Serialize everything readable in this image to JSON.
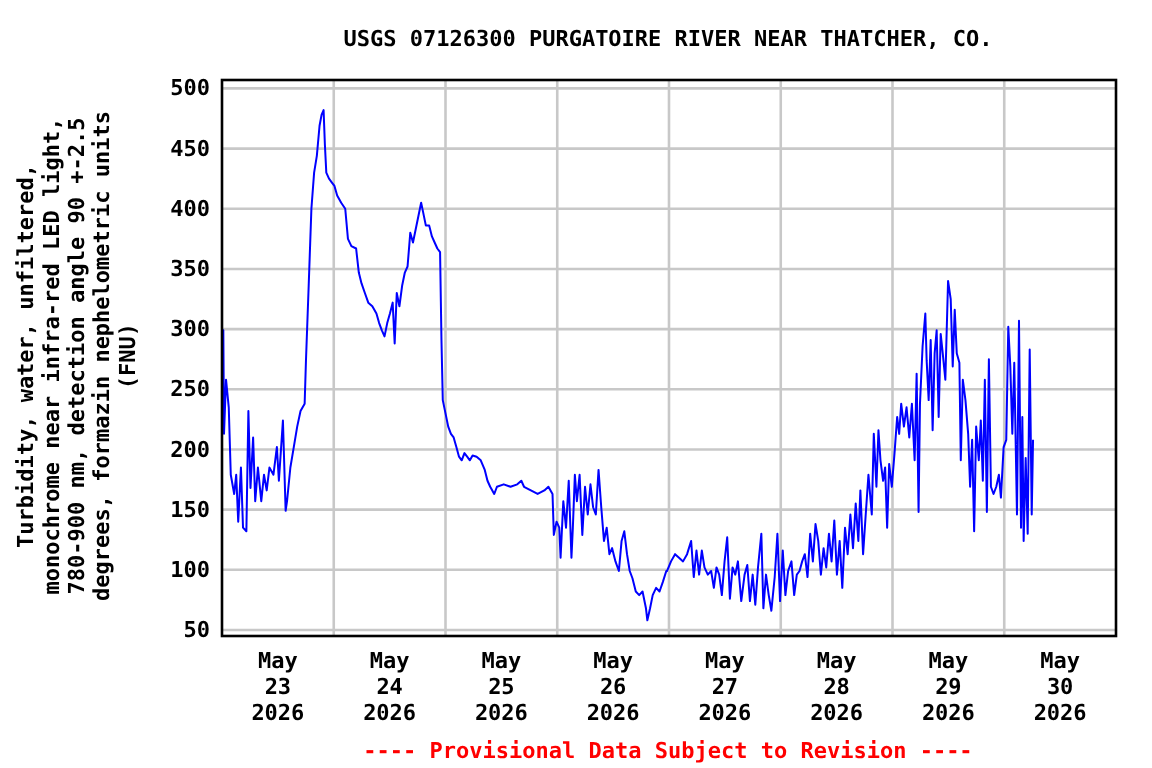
{
  "chart_data": {
    "type": "line",
    "title": "USGS 07126300 PURGATOIRE RIVER NEAR THATCHER, CO.",
    "ylabel": "Turbidity, water, unfiltered,\nmonochrome near infra-red LED light,\n780-900 nm, detection angle 90 +-2.5\ndegrees, formazin nephelometric units\n(FNU)",
    "annotations": [
      "---- Provisional Data Subject to Revision ----"
    ],
    "xlim": [
      "2026-05-23",
      "2026-05-31"
    ],
    "xticks": [
      {
        "value": "2026-05-23T12:00",
        "label": "May 23 2026"
      },
      {
        "value": "2026-05-24T00:00",
        "label": null
      },
      {
        "value": "2026-05-24T12:00",
        "label": "May 24 2026"
      },
      {
        "value": "2026-05-25T00:00",
        "label": null
      },
      {
        "value": "2026-05-25T12:00",
        "label": "May 25 2026"
      },
      {
        "value": "2026-05-26T00:00",
        "label": null
      },
      {
        "value": "2026-05-26T12:00",
        "label": "May 26 2026"
      },
      {
        "value": "2026-05-27T00:00",
        "label": null
      },
      {
        "value": "2026-05-27T12:00",
        "label": "May 27 2026"
      },
      {
        "value": "2026-05-28T00:00",
        "label": null
      },
      {
        "value": "2026-05-28T12:00",
        "label": "May 28 2026"
      },
      {
        "value": "2026-05-29T00:00",
        "label": null
      },
      {
        "value": "2026-05-29T12:00",
        "label": "May 29 2026"
      },
      {
        "value": "2026-05-30T00:00",
        "label": null
      },
      {
        "value": "2026-05-30T12:00",
        "label": "May 30 2026"
      }
    ],
    "ylim": [
      45,
      507
    ],
    "yticks": [
      50,
      100,
      150,
      200,
      250,
      300,
      350,
      400,
      450,
      500
    ],
    "grid": true,
    "series": [
      {
        "color": "#0000ff",
        "x": [
          "2026-05-23T00:10",
          "2026-05-23T00:17",
          "2026-05-23T00:26",
          "2026-05-23T00:52",
          "2026-05-23T01:27",
          "2026-05-23T01:53",
          "2026-05-23T02:37",
          "2026-05-23T03:03",
          "2026-05-23T03:29",
          "2026-05-23T04:04",
          "2026-05-23T04:31",
          "2026-05-23T05:14",
          "2026-05-23T05:40",
          "2026-05-23T06:07",
          "2026-05-23T06:41",
          "2026-05-23T07:08",
          "2026-05-23T07:43",
          "2026-05-23T08:26",
          "2026-05-23T09:01",
          "2026-05-23T09:36",
          "2026-05-23T10:11",
          "2026-05-23T11:03",
          "2026-05-23T11:47",
          "2026-05-23T12:13",
          "2026-05-23T13:05",
          "2026-05-23T13:40",
          "2026-05-23T13:58",
          "2026-05-23T14:41",
          "2026-05-23T15:25",
          "2026-05-23T16:09",
          "2026-05-23T16:52",
          "2026-05-23T17:45",
          "2026-05-23T18:02",
          "2026-05-23T18:37",
          "2026-05-23T19:12",
          "2026-05-23T19:47",
          "2026-05-23T20:22",
          "2026-05-23T20:57",
          "2026-05-23T21:23",
          "2026-05-23T21:49",
          "2026-05-23T22:06",
          "2026-05-23T22:24",
          "2026-05-23T22:59",
          "2026-05-23T23:34",
          "2026-05-24T00:09",
          "2026-05-24T00:44",
          "2026-05-24T01:36",
          "2026-05-24T02:28",
          "2026-05-24T03:03",
          "2026-05-24T03:47",
          "2026-05-24T04:48",
          "2026-05-24T05:23",
          "2026-05-24T05:58",
          "2026-05-24T06:41",
          "2026-05-24T07:25",
          "2026-05-24T08:17",
          "2026-05-24T09:10",
          "2026-05-24T09:45",
          "2026-05-24T10:20",
          "2026-05-24T10:54",
          "2026-05-24T11:29",
          "2026-05-24T12:04",
          "2026-05-24T12:39",
          "2026-05-24T13:05",
          "2026-05-24T13:32",
          "2026-05-24T14:06",
          "2026-05-24T14:41",
          "2026-05-24T15:16",
          "2026-05-24T15:51",
          "2026-05-24T16:26",
          "2026-05-24T17:01",
          "2026-05-24T17:36",
          "2026-05-24T18:11",
          "2026-05-24T18:46",
          "2026-05-24T19:12",
          "2026-05-24T19:47",
          "2026-05-24T20:30",
          "2026-05-24T21:05",
          "2026-05-24T21:40",
          "2026-05-24T22:15",
          "2026-05-24T22:50",
          "2026-05-24T23:08",
          "2026-05-24T23:25",
          "2026-05-25T00:00",
          "2026-05-25T00:35",
          "2026-05-25T01:10",
          "2026-05-25T01:45",
          "2026-05-25T02:20",
          "2026-05-25T02:54",
          "2026-05-25T03:29",
          "2026-05-25T04:04",
          "2026-05-25T04:39",
          "2026-05-25T05:14",
          "2026-05-25T05:49",
          "2026-05-25T06:41",
          "2026-05-25T07:34",
          "2026-05-25T08:26",
          "2026-05-25T09:01",
          "2026-05-25T09:36",
          "2026-05-25T10:28",
          "2026-05-25T11:03",
          "2026-05-25T12:30",
          "2026-05-25T13:58",
          "2026-05-25T15:25",
          "2026-05-25T16:17",
          "2026-05-25T16:52",
          "2026-05-25T18:20",
          "2026-05-25T19:47",
          "2026-05-25T21:14",
          "2026-05-25T22:06",
          "2026-05-25T22:59",
          "2026-05-25T23:16",
          "2026-05-25T23:51",
          "2026-05-26T00:26",
          "2026-05-26T00:43",
          "2026-05-26T01:18",
          "2026-05-26T01:53",
          "2026-05-26T02:28",
          "2026-05-26T03:03",
          "2026-05-26T03:21",
          "2026-05-26T03:47",
          "2026-05-26T04:13",
          "2026-05-26T04:48",
          "2026-05-26T05:23",
          "2026-05-26T05:58",
          "2026-05-26T06:33",
          "2026-05-26T07:08",
          "2026-05-26T07:42",
          "2026-05-26T08:17",
          "2026-05-26T08:52",
          "2026-05-26T09:27",
          "2026-05-26T10:02",
          "2026-05-26T10:37",
          "2026-05-26T11:12",
          "2026-05-26T11:47",
          "2026-05-26T12:30",
          "2026-05-26T13:14",
          "2026-05-26T13:49",
          "2026-05-26T14:24",
          "2026-05-26T14:59",
          "2026-05-26T15:34",
          "2026-05-26T16:09",
          "2026-05-26T16:52",
          "2026-05-26T17:36",
          "2026-05-26T18:19",
          "2026-05-26T19:03",
          "2026-05-26T19:21",
          "2026-05-26T19:56",
          "2026-05-26T20:30",
          "2026-05-26T21:14",
          "2026-05-26T21:58",
          "2026-05-26T22:41",
          "2026-05-26T23:25",
          "2026-05-26T23:34",
          "2026-05-27T00:26",
          "2026-05-27T01:18",
          "2026-05-27T02:09",
          "2026-05-27T03:01",
          "2026-05-27T03:53",
          "2026-05-27T04:45",
          "2026-05-27T05:19",
          "2026-05-27T05:54",
          "2026-05-27T06:28",
          "2026-05-27T07:03",
          "2026-05-27T07:37",
          "2026-05-27T08:20",
          "2026-05-27T09:03",
          "2026-05-27T09:38",
          "2026-05-27T10:12",
          "2026-05-27T10:47",
          "2026-05-27T11:21",
          "2026-05-27T11:56",
          "2026-05-27T12:30",
          "2026-05-27T13:05",
          "2026-05-27T13:39",
          "2026-05-27T14:14",
          "2026-05-27T14:48",
          "2026-05-27T15:31",
          "2026-05-27T16:14",
          "2026-05-27T16:49",
          "2026-05-27T17:23",
          "2026-05-27T17:58",
          "2026-05-27T18:32",
          "2026-05-27T19:07",
          "2026-05-27T19:50",
          "2026-05-27T20:16",
          "2026-05-27T20:50",
          "2026-05-27T21:25",
          "2026-05-27T21:59",
          "2026-05-27T22:42",
          "2026-05-27T23:17",
          "2026-05-27T23:51",
          "2026-05-28T00:26",
          "2026-05-28T01:00",
          "2026-05-28T01:35",
          "2026-05-28T02:18",
          "2026-05-28T02:53",
          "2026-05-28T03:27",
          "2026-05-28T04:02",
          "2026-05-28T04:36",
          "2026-05-28T05:10",
          "2026-05-28T05:45",
          "2026-05-28T06:19",
          "2026-05-28T06:54",
          "2026-05-28T07:28",
          "2026-05-28T08:03",
          "2026-05-28T08:37",
          "2026-05-28T09:12",
          "2026-05-28T09:46",
          "2026-05-28T10:21",
          "2026-05-28T10:55",
          "2026-05-28T11:30",
          "2026-05-28T12:04",
          "2026-05-28T12:39",
          "2026-05-28T13:13",
          "2026-05-28T13:48",
          "2026-05-28T14:22",
          "2026-05-28T14:57",
          "2026-05-28T15:31",
          "2026-05-28T16:06",
          "2026-05-28T16:40",
          "2026-05-28T17:06",
          "2026-05-28T17:41",
          "2026-05-28T18:15",
          "2026-05-28T18:50",
          "2026-05-28T19:33",
          "2026-05-28T19:59",
          "2026-05-28T20:33",
          "2026-05-28T20:59",
          "2026-05-28T21:25",
          "2026-05-28T21:59",
          "2026-05-28T22:25",
          "2026-05-28T22:51",
          "2026-05-28T23:17",
          "2026-05-28T23:51",
          "2026-05-29T00:26",
          "2026-05-29T01:00",
          "2026-05-29T01:26",
          "2026-05-29T01:52",
          "2026-05-29T02:27",
          "2026-05-29T03:01",
          "2026-05-29T03:36",
          "2026-05-29T04:10",
          "2026-05-29T04:45",
          "2026-05-29T05:11",
          "2026-05-29T05:36",
          "2026-05-29T05:54",
          "2026-05-29T06:28",
          "2026-05-29T07:03",
          "2026-05-29T07:20",
          "2026-05-29T07:46",
          "2026-05-29T08:12",
          "2026-05-29T08:37",
          "2026-05-29T09:03",
          "2026-05-29T09:29",
          "2026-05-29T09:55",
          "2026-05-29T10:21",
          "2026-05-29T10:47",
          "2026-05-29T11:21",
          "2026-05-29T11:56",
          "2026-05-29T12:30",
          "2026-05-29T12:56",
          "2026-05-29T13:22",
          "2026-05-29T13:48",
          "2026-05-29T14:22",
          "2026-05-29T14:40",
          "2026-05-29T15:06",
          "2026-05-29T15:40",
          "2026-05-29T16:15",
          "2026-05-29T16:40",
          "2026-05-29T17:06",
          "2026-05-29T17:32",
          "2026-05-29T17:58",
          "2026-05-29T18:32",
          "2026-05-29T18:58",
          "2026-05-29T19:24",
          "2026-05-29T19:50",
          "2026-05-29T20:16",
          "2026-05-29T20:42",
          "2026-05-29T21:08",
          "2026-05-29T21:42",
          "2026-05-29T22:17",
          "2026-05-29T22:51",
          "2026-05-29T23:17",
          "2026-05-29T23:52",
          "2026-05-30T00:26",
          "2026-05-30T00:52",
          "2026-05-30T01:18",
          "2026-05-30T01:44",
          "2026-05-30T02:09",
          "2026-05-30T02:44",
          "2026-05-30T03:10",
          "2026-05-30T03:36",
          "2026-05-30T03:53",
          "2026-05-30T04:10",
          "2026-05-30T04:36",
          "2026-05-30T05:02",
          "2026-05-30T05:28",
          "2026-05-30T05:54",
          "2026-05-30T06:11"
        ],
        "values": [
          291,
          299,
          213,
          258,
          235,
          179,
          163,
          179,
          140,
          185,
          135,
          132,
          232,
          168,
          210,
          157,
          185,
          157,
          179,
          166,
          185,
          179,
          202,
          174,
          224,
          149,
          157,
          185,
          202,
          219,
          232,
          238,
          274,
          336,
          400,
          430,
          444,
          469,
          478,
          482,
          453,
          430,
          425,
          422,
          419,
          411,
          405,
          400,
          375,
          369,
          367,
          347,
          338,
          330,
          322,
          319,
          313,
          305,
          299,
          294,
          305,
          313,
          322,
          288,
          330,
          319,
          336,
          347,
          352,
          380,
          372,
          383,
          394,
          405,
          397,
          386,
          386,
          377,
          372,
          367,
          364,
          291,
          241,
          230,
          219,
          213,
          210,
          202,
          194,
          191,
          197,
          194,
          191,
          195,
          194,
          191,
          183,
          174,
          169,
          163,
          169,
          171,
          169,
          171,
          174,
          169,
          166,
          163,
          166,
          169,
          163,
          129,
          140,
          135,
          110,
          157,
          135,
          174,
          110,
          135,
          179,
          157,
          179,
          129,
          169,
          146,
          171,
          152,
          146,
          183,
          152,
          124,
          135,
          113,
          118,
          107,
          99,
          124,
          132,
          113,
          99,
          93,
          82,
          79,
          82,
          68,
          58,
          68,
          79,
          85,
          82,
          90,
          99,
          99,
          107,
          113,
          110,
          107,
          113,
          124,
          94,
          116,
          96,
          116,
          102,
          96,
          99,
          85,
          102,
          96,
          79,
          107,
          127,
          76,
          102,
          96,
          107,
          74,
          96,
          104,
          74,
          96,
          71,
          102,
          130,
          68,
          96,
          79,
          66,
          94,
          130,
          74,
          116,
          79,
          99,
          107,
          79,
          96,
          99,
          107,
          113,
          94,
          130,
          107,
          138,
          124,
          96,
          118,
          102,
          130,
          107,
          141,
          96,
          124,
          85,
          135,
          113,
          146,
          118,
          155,
          124,
          166,
          113,
          146,
          179,
          146,
          213,
          169,
          216,
          191,
          174,
          185,
          135,
          188,
          169,
          197,
          227,
          213,
          238,
          219,
          235,
          210,
          238,
          191,
          263,
          148,
          238,
          286,
          313,
          274,
          241,
          291,
          216,
          280,
          299,
          227,
          296,
          280,
          258,
          340,
          325,
          269,
          316,
          280,
          272,
          191,
          258,
          241,
          213,
          169,
          208,
          132,
          219,
          191,
          224,
          174,
          258,
          148,
          275,
          169,
          163,
          169,
          179,
          160,
          202,
          208,
          302,
          269,
          213,
          272,
          146,
          307,
          135,
          227,
          124,
          193,
          130,
          283,
          146,
          208
        ]
      }
    ]
  }
}
